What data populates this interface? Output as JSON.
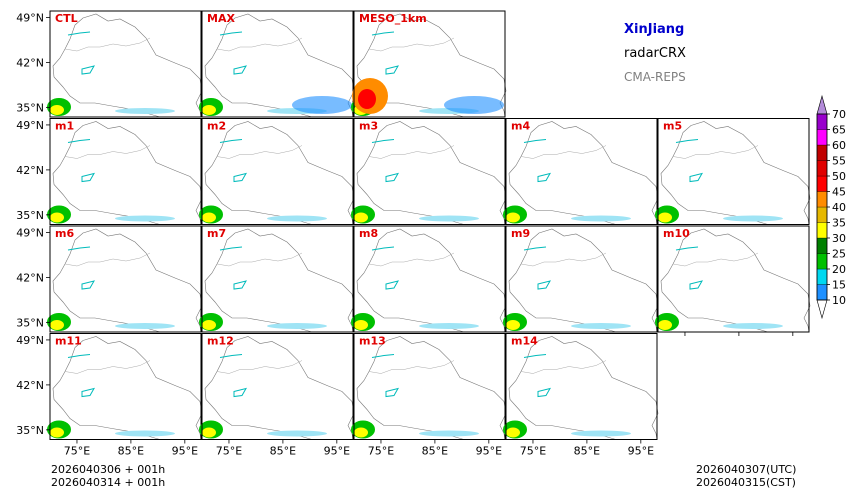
{
  "header": {
    "region": "XinJiang",
    "variable": "radarCRX",
    "model": "CMA-REPS",
    "region_color": "#0000cc",
    "model_color": "#808080"
  },
  "footer": {
    "init_utc": "2026040306  +  001h",
    "init_cst": "2026040314  +  001h",
    "valid_utc": "2026040307(UTC)",
    "valid_cst": "2026040315(CST)"
  },
  "chart_data": {
    "type": "heatmap",
    "title": "XinJiang radarCRX CMA-REPS",
    "panels": [
      [
        "CTL",
        "MAX",
        "MESO_1km"
      ],
      [
        "m1",
        "m2",
        "m3",
        "m4",
        "m5"
      ],
      [
        "m6",
        "m7",
        "m8",
        "m9",
        "m10"
      ],
      [
        "m11",
        "m12",
        "m13",
        "m14"
      ]
    ],
    "panel_label_color": "#e00000",
    "lat_ticks": [
      "49°N",
      "42°N",
      "35°N"
    ],
    "lon_ticks": [
      "75°E",
      "85°E",
      "95°E"
    ],
    "lon_range": [
      70,
      98
    ],
    "lat_range": [
      33.5,
      50
    ],
    "colorbar": {
      "levels": [
        10,
        15,
        20,
        25,
        30,
        35,
        40,
        45,
        50,
        55,
        60,
        65,
        70
      ],
      "colors": [
        "#1e90ff",
        "#00d8f0",
        "#00c000",
        "#008000",
        "#ffff00",
        "#e6b800",
        "#ff8c00",
        "#ff0000",
        "#e00000",
        "#c00000",
        "#ff00ff",
        "#9900cc",
        "#b38bd9"
      ],
      "extend": "both"
    }
  }
}
